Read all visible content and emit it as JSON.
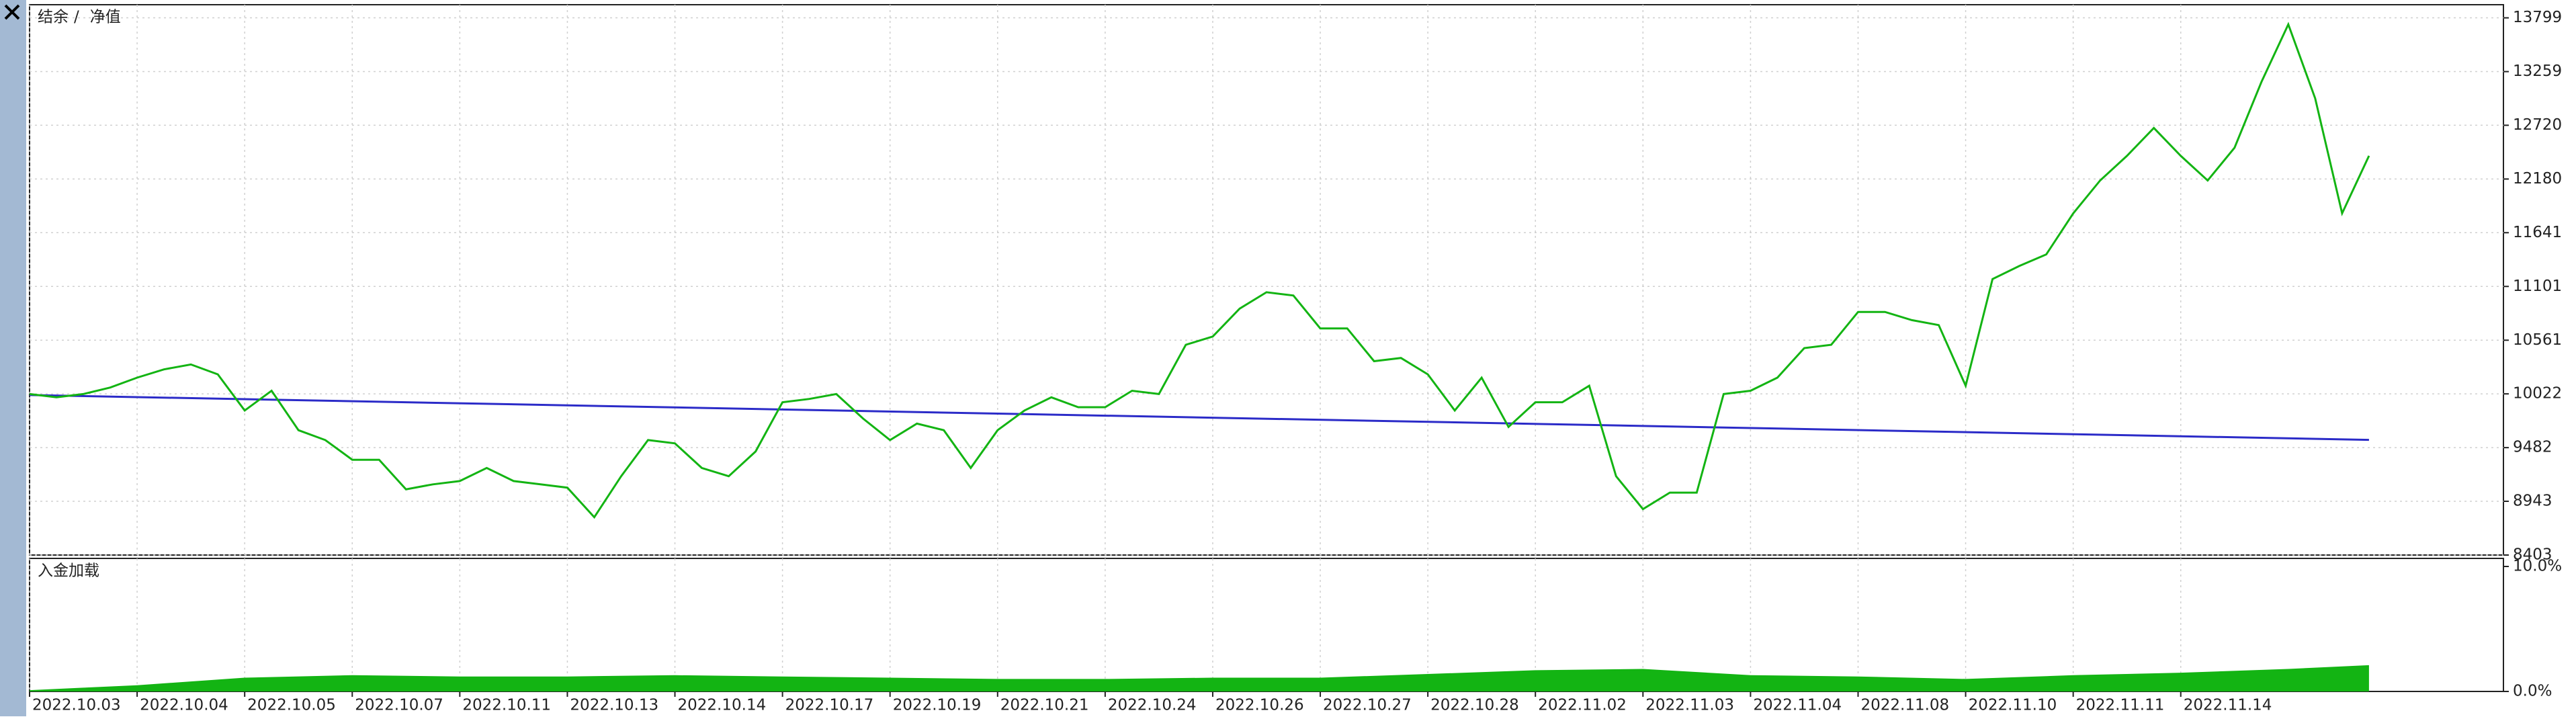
{
  "chart_data": [
    {
      "type": "line",
      "legend_separator": "/",
      "grid": true,
      "xlim": [
        0,
        23
      ],
      "ylim": [
        8403,
        13931
      ],
      "yticks": [
        13799,
        13259,
        12720,
        12180,
        11641,
        11101,
        10561,
        10022,
        9482,
        8943,
        8403
      ],
      "series": [
        {
          "name": "结余",
          "color": "#2b2bc8",
          "x": [
            0,
            21.75
          ],
          "values": [
            10010,
            9560
          ]
        },
        {
          "name": "净值",
          "color": "#13b413",
          "x": [
            0,
            0.25,
            0.5,
            0.75,
            1,
            1.25,
            1.5,
            1.75,
            2,
            2.25,
            2.5,
            2.75,
            3,
            3.25,
            3.5,
            3.75,
            4,
            4.25,
            4.5,
            4.75,
            5,
            5.25,
            5.5,
            5.75,
            6,
            6.25,
            6.5,
            6.75,
            7,
            7.25,
            7.5,
            7.75,
            8,
            8.25,
            8.5,
            8.75,
            9,
            9.25,
            9.5,
            9.75,
            10,
            10.25,
            10.5,
            10.75,
            11,
            11.25,
            11.5,
            11.75,
            12,
            12.25,
            12.5,
            12.75,
            13,
            13.25,
            13.5,
            13.75,
            14,
            14.25,
            14.5,
            14.75,
            15,
            15.25,
            15.5,
            15.75,
            16,
            16.25,
            16.5,
            16.75,
            17,
            17.25,
            17.5,
            17.75,
            18,
            18.25,
            18.5,
            18.75,
            19,
            19.25,
            19.5,
            19.75,
            20,
            20.25,
            20.5,
            20.75,
            21,
            21.25,
            21.5,
            21.75
          ],
          "values": [
            10020,
            9987,
            10020,
            10086,
            10185,
            10268,
            10317,
            10218,
            9855,
            10053,
            9657,
            9558,
            9360,
            9360,
            9063,
            9113,
            9146,
            9278,
            9146,
            9113,
            9080,
            8783,
            9195,
            9558,
            9525,
            9278,
            9195,
            9443,
            9938,
            9971,
            10020,
            9773,
            9558,
            9723,
            9657,
            9278,
            9657,
            9855,
            9987,
            9888,
            9888,
            10053,
            10020,
            10515,
            10598,
            10878,
            11043,
            11010,
            10680,
            10680,
            10350,
            10383,
            10218,
            9855,
            10185,
            9690,
            9938,
            9938,
            10103,
            9195,
            8865,
            9030,
            9030,
            10020,
            10053,
            10185,
            10482,
            10515,
            10845,
            10845,
            10763,
            10713,
            10103,
            11175,
            11307,
            11423,
            11835,
            12165,
            12413,
            12693,
            12413,
            12165,
            12495,
            13155,
            13733,
            12990,
            11835,
            12413
          ]
        }
      ]
    },
    {
      "type": "area",
      "title": "入金加载",
      "color": "#13b413",
      "xlim": [
        0,
        23
      ],
      "ylim": [
        0,
        10
      ],
      "yticks": [
        {
          "value": 10,
          "label": "10.0%"
        },
        {
          "value": 0,
          "label": "0.0%"
        }
      ],
      "xticks": [
        {
          "value": 0,
          "label": "2022.10.03"
        },
        {
          "value": 1,
          "label": "2022.10.04"
        },
        {
          "value": 2,
          "label": "2022.10.05"
        },
        {
          "value": 3,
          "label": "2022.10.07"
        },
        {
          "value": 4,
          "label": "2022.10.11"
        },
        {
          "value": 5,
          "label": "2022.10.13"
        },
        {
          "value": 6,
          "label": "2022.10.14"
        },
        {
          "value": 7,
          "label": "2022.10.17"
        },
        {
          "value": 8,
          "label": "2022.10.19"
        },
        {
          "value": 9,
          "label": "2022.10.21"
        },
        {
          "value": 10,
          "label": "2022.10.24"
        },
        {
          "value": 11,
          "label": "2022.10.26"
        },
        {
          "value": 12,
          "label": "2022.10.27"
        },
        {
          "value": 13,
          "label": "2022.10.28"
        },
        {
          "value": 14,
          "label": "2022.11.02"
        },
        {
          "value": 15,
          "label": "2022.11.03"
        },
        {
          "value": 16,
          "label": "2022.11.04"
        },
        {
          "value": 17,
          "label": "2022.11.08"
        },
        {
          "value": 18,
          "label": "2022.11.10"
        },
        {
          "value": 19,
          "label": "2022.11.11"
        },
        {
          "value": 20,
          "label": "2022.11.14"
        }
      ],
      "x": [
        0,
        0.5,
        1,
        1.5,
        2,
        3,
        4,
        5,
        6,
        7,
        8,
        9,
        10,
        11,
        12,
        13,
        14,
        15,
        16,
        17,
        18,
        19,
        20,
        21,
        21.75
      ],
      "values": [
        0.1,
        0.3,
        0.5,
        0.8,
        1.1,
        1.3,
        1.2,
        1.2,
        1.3,
        1.2,
        1.1,
        1.0,
        1.0,
        1.1,
        1.1,
        1.4,
        1.7,
        1.8,
        1.3,
        1.2,
        1.0,
        1.3,
        1.5,
        1.8,
        2.1
      ]
    }
  ]
}
